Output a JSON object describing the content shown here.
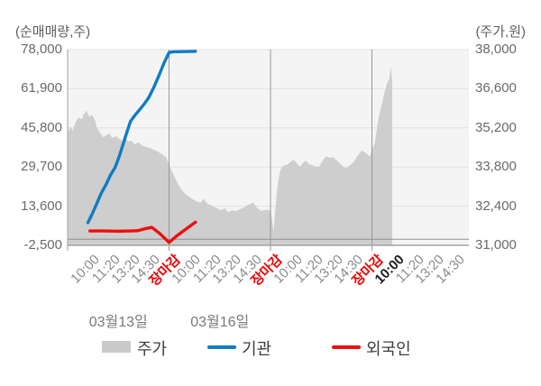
{
  "header": {
    "left_unit": "(순매매량,주)",
    "right_unit": "(주가,원)"
  },
  "legend": {
    "items": [
      {
        "label": "주가",
        "swatch": "area",
        "color": "#cacaca"
      },
      {
        "label": "기관",
        "swatch": "line",
        "color": "#0f7cc2"
      },
      {
        "label": "외국인",
        "swatch": "line",
        "color": "#ee0e0e"
      }
    ]
  },
  "chart_data": {
    "type": "mixed",
    "title": "",
    "grid": true,
    "plot_colors": {
      "background": "#f4f4f4",
      "gridline": "#e2e2e2",
      "day_separator": "#979797",
      "axis_line": "#a2a2a2",
      "zero_line": "#8f8f8f",
      "price_fill": "#cecece",
      "institution_line": "#0f7cc2",
      "foreigner_line": "#ee0e0e"
    },
    "left_axis": {
      "unit": "(순매매량,주)",
      "min": -2500,
      "max": 78000,
      "ticks": [
        78000,
        61900,
        45800,
        29700,
        13600,
        -2500
      ],
      "tick_labels": [
        "78,000",
        "61,900",
        "45,800",
        "29,700",
        "13,600",
        "-2,500"
      ]
    },
    "right_axis": {
      "unit": "(주가,원)",
      "min": 31000,
      "max": 38000,
      "ticks": [
        38000,
        36600,
        35200,
        33800,
        32400,
        31000
      ],
      "tick_labels": [
        "38,000",
        "36,600",
        "35,200",
        "33,800",
        "32,400",
        "31,000"
      ]
    },
    "x_axis": {
      "ticks": [
        {
          "label": "10:00",
          "t": 0.2,
          "style": "normal"
        },
        {
          "label": "11:20",
          "t": 0.4,
          "style": "normal"
        },
        {
          "label": "13:20",
          "t": 0.6,
          "style": "normal"
        },
        {
          "label": "14:30",
          "t": 0.8,
          "style": "normal"
        },
        {
          "label": "장마감",
          "t": 1.0,
          "style": "close"
        },
        {
          "label": "10:00",
          "t": 1.2,
          "style": "normal"
        },
        {
          "label": "11:20",
          "t": 1.4,
          "style": "normal"
        },
        {
          "label": "13:20",
          "t": 1.6,
          "style": "normal"
        },
        {
          "label": "14:30",
          "t": 1.8,
          "style": "normal"
        },
        {
          "label": "장마감",
          "t": 2.0,
          "style": "close"
        },
        {
          "label": "10:00",
          "t": 2.2,
          "style": "normal"
        },
        {
          "label": "11:20",
          "t": 2.4,
          "style": "normal"
        },
        {
          "label": "13:20",
          "t": 2.6,
          "style": "normal"
        },
        {
          "label": "14:30",
          "t": 2.8,
          "style": "normal"
        },
        {
          "label": "장마감",
          "t": 3.0,
          "style": "close"
        },
        {
          "label": "10:00",
          "t": 3.2,
          "style": "current"
        },
        {
          "label": "11:20",
          "t": 3.4,
          "style": "normal"
        },
        {
          "label": "13:20",
          "t": 3.6,
          "style": "normal"
        },
        {
          "label": "14:30",
          "t": 3.8,
          "style": "normal"
        }
      ],
      "dates": [
        {
          "label": "03월13일",
          "t": 0.5
        },
        {
          "label": "03월16일",
          "t": 1.5
        }
      ]
    },
    "series": {
      "price": {
        "name": "주가",
        "axis": "right",
        "kind": "area",
        "points": [
          [
            0.0,
            35030
          ],
          [
            0.03,
            35260
          ],
          [
            0.05,
            35100
          ],
          [
            0.08,
            35420
          ],
          [
            0.11,
            35580
          ],
          [
            0.14,
            35500
          ],
          [
            0.16,
            35700
          ],
          [
            0.19,
            35810
          ],
          [
            0.21,
            35600
          ],
          [
            0.24,
            35660
          ],
          [
            0.27,
            35480
          ],
          [
            0.29,
            35190
          ],
          [
            0.32,
            35030
          ],
          [
            0.35,
            34870
          ],
          [
            0.38,
            34940
          ],
          [
            0.41,
            35000
          ],
          [
            0.44,
            34840
          ],
          [
            0.48,
            34900
          ],
          [
            0.51,
            34800
          ],
          [
            0.54,
            34740
          ],
          [
            0.57,
            34820
          ],
          [
            0.6,
            34710
          ],
          [
            0.63,
            34740
          ],
          [
            0.66,
            34610
          ],
          [
            0.7,
            34680
          ],
          [
            0.73,
            34580
          ],
          [
            0.77,
            34520
          ],
          [
            0.81,
            34480
          ],
          [
            0.85,
            34420
          ],
          [
            0.89,
            34350
          ],
          [
            0.93,
            34260
          ],
          [
            0.97,
            34150
          ],
          [
            1.0,
            33900
          ],
          [
            1.03,
            33640
          ],
          [
            1.07,
            33320
          ],
          [
            1.11,
            33060
          ],
          [
            1.16,
            32840
          ],
          [
            1.22,
            32680
          ],
          [
            1.27,
            32570
          ],
          [
            1.31,
            32520
          ],
          [
            1.34,
            32660
          ],
          [
            1.38,
            32480
          ],
          [
            1.42,
            32420
          ],
          [
            1.46,
            32350
          ],
          [
            1.51,
            32260
          ],
          [
            1.55,
            32330
          ],
          [
            1.58,
            32190
          ],
          [
            1.62,
            32250
          ],
          [
            1.66,
            32220
          ],
          [
            1.7,
            32290
          ],
          [
            1.74,
            32360
          ],
          [
            1.78,
            32450
          ],
          [
            1.83,
            32530
          ],
          [
            1.87,
            32330
          ],
          [
            1.91,
            32230
          ],
          [
            1.95,
            32270
          ],
          [
            2.0,
            32260
          ],
          [
            2.02,
            31800
          ],
          [
            2.03,
            31480
          ],
          [
            2.05,
            32400
          ],
          [
            2.07,
            33160
          ],
          [
            2.09,
            33600
          ],
          [
            2.11,
            33810
          ],
          [
            2.14,
            33860
          ],
          [
            2.17,
            33900
          ],
          [
            2.2,
            34000
          ],
          [
            2.23,
            34060
          ],
          [
            2.26,
            33930
          ],
          [
            2.29,
            33810
          ],
          [
            2.32,
            33960
          ],
          [
            2.35,
            34030
          ],
          [
            2.38,
            33900
          ],
          [
            2.41,
            33870
          ],
          [
            2.44,
            33820
          ],
          [
            2.48,
            33810
          ],
          [
            2.52,
            34060
          ],
          [
            2.55,
            34190
          ],
          [
            2.58,
            34130
          ],
          [
            2.62,
            34150
          ],
          [
            2.66,
            34010
          ],
          [
            2.7,
            33870
          ],
          [
            2.74,
            33740
          ],
          [
            2.78,
            33860
          ],
          [
            2.82,
            33970
          ],
          [
            2.86,
            34210
          ],
          [
            2.9,
            34390
          ],
          [
            2.94,
            34300
          ],
          [
            2.98,
            34170
          ],
          [
            3.0,
            34400
          ],
          [
            3.03,
            34680
          ],
          [
            3.05,
            35190
          ],
          [
            3.07,
            35650
          ],
          [
            3.1,
            36070
          ],
          [
            3.13,
            36550
          ],
          [
            3.15,
            36810
          ],
          [
            3.17,
            36940
          ],
          [
            3.185,
            37390
          ],
          [
            3.2,
            36900
          ]
        ]
      },
      "institution": {
        "name": "기관",
        "axis": "left",
        "kind": "line",
        "points": [
          [
            0.2,
            6800
          ],
          [
            0.24,
            10200
          ],
          [
            0.29,
            14900
          ],
          [
            0.33,
            18800
          ],
          [
            0.38,
            22600
          ],
          [
            0.42,
            26200
          ],
          [
            0.47,
            29700
          ],
          [
            0.51,
            34200
          ],
          [
            0.55,
            39500
          ],
          [
            0.58,
            43500
          ],
          [
            0.62,
            48500
          ],
          [
            0.66,
            50800
          ],
          [
            0.71,
            53300
          ],
          [
            0.76,
            55900
          ],
          [
            0.8,
            58300
          ],
          [
            0.85,
            62500
          ],
          [
            0.9,
            67300
          ],
          [
            0.95,
            72500
          ],
          [
            1.0,
            76800
          ],
          [
            1.04,
            77100
          ],
          [
            1.26,
            77300
          ]
        ]
      },
      "foreigner": {
        "name": "외국인",
        "axis": "left",
        "kind": "line",
        "points": [
          [
            0.22,
            3400
          ],
          [
            0.35,
            3400
          ],
          [
            0.5,
            3300
          ],
          [
            0.62,
            3400
          ],
          [
            0.69,
            3500
          ],
          [
            0.76,
            4300
          ],
          [
            0.83,
            4900
          ],
          [
            0.91,
            2300
          ],
          [
            1.0,
            -1300
          ],
          [
            1.08,
            1500
          ],
          [
            1.18,
            4600
          ],
          [
            1.26,
            7000
          ]
        ]
      }
    }
  }
}
